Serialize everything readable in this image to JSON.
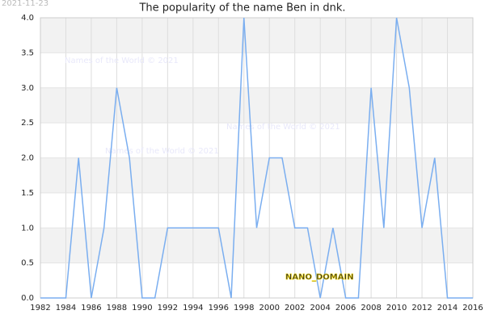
{
  "chart_data": {
    "type": "line",
    "title": "The popularity of the name Ben in dnk.",
    "date_stamp": "2021-11-23",
    "watermarks": [
      "Names of the World © 2021",
      "Names of the World © 2021",
      "Names of the World © 2021"
    ],
    "domain_label": "NANO_DOMAIN",
    "x": [
      1982,
      1983,
      1984,
      1985,
      1986,
      1987,
      1988,
      1989,
      1990,
      1991,
      1992,
      1993,
      1994,
      1995,
      1996,
      1997,
      1998,
      1999,
      2000,
      2001,
      2002,
      2003,
      2004,
      2005,
      2006,
      2007,
      2008,
      2009,
      2010,
      2011,
      2012,
      2013,
      2014,
      2015,
      2016
    ],
    "series": [
      {
        "color": "#7aaef0",
        "values": [
          0,
          0,
          0,
          2,
          0,
          1,
          3,
          2,
          0,
          0,
          1,
          1,
          1,
          1,
          1,
          0,
          4,
          1,
          2,
          2,
          1,
          1,
          0,
          1,
          0,
          0,
          3,
          1,
          4,
          3,
          1,
          2,
          0,
          0,
          0
        ]
      }
    ],
    "xlim": [
      1982,
      2016
    ],
    "xticks": [
      1982,
      1984,
      1986,
      1988,
      1990,
      1992,
      1994,
      1996,
      1998,
      2000,
      2002,
      2004,
      2006,
      2008,
      2010,
      2012,
      2014,
      2016
    ],
    "ylim": [
      0,
      4
    ],
    "yticks": [
      {
        "value": 0,
        "label": "0.0"
      },
      {
        "value": 0.5,
        "label": "0.5"
      },
      {
        "value": 1,
        "label": "1.0"
      },
      {
        "value": 1.5,
        "label": "1.5"
      },
      {
        "value": 2,
        "label": "2.0"
      },
      {
        "value": 2.5,
        "label": "2.5"
      },
      {
        "value": 3,
        "label": "3.0"
      },
      {
        "value": 3.5,
        "label": "3.5"
      },
      {
        "value": 4,
        "label": "4.0"
      }
    ],
    "grid": true
  }
}
